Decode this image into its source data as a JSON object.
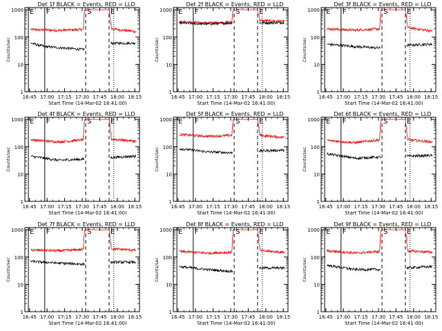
{
  "chart_data": [
    {
      "type": "line",
      "title": "Det 1f BLACK = Events, RED = LLD",
      "xlabel": "Start Time (14-Mar-02 16:41:00)",
      "ylabel": "Counts/sec",
      "yscale": "log",
      "ylim": [
        1,
        1200
      ],
      "xticks": [
        "16:45",
        "17:00",
        "17:15",
        "17:30",
        "17:45",
        "18:00",
        "18:15"
      ],
      "yticks": [
        "1",
        "10",
        "100",
        "1000"
      ],
      "markers": [
        {
          "label": "E",
          "type": "solid",
          "x": "16:44"
        },
        {
          "label": "F",
          "type": "solid",
          "x": "16:58"
        },
        {
          "label": "S",
          "type": "dashed",
          "x": "17:33"
        },
        {
          "label": "E",
          "type": "dashed",
          "x": "17:53"
        }
      ],
      "series": [
        {
          "color": "#ff0000",
          "level": 190,
          "points": [
            [
              "16:46",
              190
            ],
            [
              "17:10",
              175
            ],
            [
              "17:31",
              190
            ],
            [
              "17:32",
              1000
            ],
            [
              "17:53",
              1000
            ],
            [
              "17:55",
              200
            ],
            [
              "18:15",
              160
            ]
          ]
        },
        {
          "color": "#000000",
          "level": 70,
          "points": [
            [
              "16:46",
              60
            ],
            [
              "16:58",
              45
            ],
            [
              "17:31",
              35
            ],
            [
              "17:53",
              60
            ],
            [
              "18:15",
              60
            ]
          ]
        }
      ]
    },
    {
      "type": "line",
      "title": "Det 2f BLACK = Events, RED = LLD",
      "xlabel": "Start Time (14-Mar-02 16:41:00)",
      "ylabel": "Counts/sec",
      "yscale": "log",
      "ylim": [
        1,
        1200
      ],
      "xticks": [
        "16:45",
        "17:00",
        "17:15",
        "17:30",
        "17:45",
        "18:00",
        "18:15"
      ],
      "yticks": [
        "1",
        "10",
        "100",
        "1000"
      ],
      "markers": [
        {
          "label": "E",
          "type": "solid",
          "x": "16:44"
        },
        {
          "label": "F",
          "type": "solid",
          "x": "16:58"
        },
        {
          "label": "S",
          "type": "dashed",
          "x": "17:33"
        },
        {
          "label": "E",
          "type": "dashed",
          "x": "17:53"
        }
      ],
      "series": [
        {
          "color": "#ff0000",
          "points": [
            [
              "16:46",
              360
            ],
            [
              "17:10",
              330
            ],
            [
              "17:31",
              350
            ],
            [
              "17:32",
              1000
            ],
            [
              "17:53",
              1000
            ],
            [
              "17:55",
              400
            ],
            [
              "18:15",
              380
            ]
          ]
        },
        {
          "color": "#000000",
          "points": [
            [
              "16:46",
              330
            ],
            [
              "17:10",
              300
            ],
            [
              "17:31",
              330
            ],
            [
              "17:53",
              330
            ],
            [
              "18:15",
              340
            ]
          ]
        }
      ]
    },
    {
      "type": "line",
      "title": "Det 3f BLACK = Events, RED = LLD",
      "xlabel": "Start Time (14-Mar-02 16:41:00)",
      "ylabel": "Counts/sec",
      "yscale": "log",
      "ylim": [
        1,
        1200
      ],
      "xticks": [
        "16:45",
        "17:00",
        "17:15",
        "17:30",
        "17:45",
        "18:00",
        "18:15"
      ],
      "yticks": [
        "1",
        "10",
        "100",
        "1000"
      ],
      "markers": [
        {
          "label": "E",
          "type": "solid",
          "x": "16:44"
        },
        {
          "label": "F",
          "type": "solid",
          "x": "16:58"
        },
        {
          "label": "S",
          "type": "dashed",
          "x": "17:33"
        },
        {
          "label": "E",
          "type": "dashed",
          "x": "17:53"
        }
      ],
      "series": [
        {
          "color": "#ff0000",
          "points": [
            [
              "16:46",
              200
            ],
            [
              "17:10",
              180
            ],
            [
              "17:31",
              200
            ],
            [
              "17:32",
              1000
            ],
            [
              "17:53",
              1000
            ],
            [
              "17:55",
              220
            ],
            [
              "18:15",
              170
            ]
          ]
        },
        {
          "color": "#000000",
          "points": [
            [
              "16:46",
              55
            ],
            [
              "17:10",
              45
            ],
            [
              "17:31",
              40
            ],
            [
              "17:53",
              50
            ],
            [
              "18:15",
              55
            ]
          ]
        }
      ]
    },
    {
      "type": "line",
      "title": "Det 4f BLACK = Events, RED = LLD",
      "xlabel": "Start Time (14-Mar-02 16:41:00)",
      "ylabel": "Counts/sec",
      "yscale": "log",
      "ylim": [
        1,
        1200
      ],
      "xticks": [
        "16:45",
        "17:00",
        "17:15",
        "17:30",
        "17:45",
        "18:00",
        "18:15"
      ],
      "yticks": [
        "1",
        "10",
        "100",
        "1000"
      ],
      "markers": [
        {
          "label": "E",
          "type": "solid",
          "x": "16:44"
        },
        {
          "label": "F",
          "type": "solid",
          "x": "16:58"
        },
        {
          "label": "S",
          "type": "dashed",
          "x": "17:33"
        },
        {
          "label": "E",
          "type": "dashed",
          "x": "17:53"
        }
      ],
      "series": [
        {
          "color": "#ff0000",
          "points": [
            [
              "16:46",
              180
            ],
            [
              "17:10",
              150
            ],
            [
              "17:31",
              180
            ],
            [
              "17:32",
              1000
            ],
            [
              "17:53",
              1000
            ],
            [
              "17:55",
              190
            ],
            [
              "18:15",
              160
            ]
          ]
        },
        {
          "color": "#000000",
          "points": [
            [
              "16:46",
              45
            ],
            [
              "17:10",
              32
            ],
            [
              "17:31",
              35
            ],
            [
              "17:53",
              40
            ],
            [
              "18:15",
              45
            ]
          ]
        }
      ]
    },
    {
      "type": "line",
      "title": "Det 5f BLACK = Events, RED = LLD",
      "xlabel": "Start Time (14-Mar-02 16:41:00)",
      "ylabel": "Counts/sec",
      "yscale": "log",
      "ylim": [
        1,
        1200
      ],
      "xticks": [
        "16:45",
        "17:00",
        "17:15",
        "17:30",
        "17:45",
        "18:00",
        "18:15"
      ],
      "yticks": [
        "1",
        "10",
        "100",
        "1000"
      ],
      "markers": [
        {
          "label": "E",
          "type": "solid",
          "x": "16:44"
        },
        {
          "label": "F",
          "type": "solid",
          "x": "16:58"
        },
        {
          "label": "S",
          "type": "dashed",
          "x": "17:33"
        },
        {
          "label": "E",
          "type": "dashed",
          "x": "17:53"
        }
      ],
      "series": [
        {
          "color": "#ff0000",
          "points": [
            [
              "16:46",
              280
            ],
            [
              "17:10",
              240
            ],
            [
              "17:31",
              260
            ],
            [
              "17:32",
              1000
            ],
            [
              "17:53",
              1000
            ],
            [
              "17:55",
              260
            ],
            [
              "18:15",
              220
            ]
          ]
        },
        {
          "color": "#000000",
          "points": [
            [
              "16:46",
              85
            ],
            [
              "17:10",
              65
            ],
            [
              "17:31",
              60
            ],
            [
              "17:53",
              70
            ],
            [
              "18:15",
              75
            ]
          ]
        }
      ]
    },
    {
      "type": "line",
      "title": "Det 6f BLACK = Events, RED = LLD",
      "xlabel": "Start Time (14-Mar-02 16:41:00)",
      "ylabel": "Counts/sec",
      "yscale": "log",
      "ylim": [
        1,
        1200
      ],
      "xticks": [
        "16:45",
        "17:00",
        "17:15",
        "17:30",
        "17:45",
        "18:00",
        "18:15"
      ],
      "yticks": [
        "1",
        "10",
        "100",
        "1000"
      ],
      "markers": [
        {
          "label": "E",
          "type": "solid",
          "x": "16:44"
        },
        {
          "label": "F",
          "type": "solid",
          "x": "16:58"
        },
        {
          "label": "S",
          "type": "dashed",
          "x": "17:33"
        },
        {
          "label": "E",
          "type": "dashed",
          "x": "17:53"
        }
      ],
      "series": [
        {
          "color": "#ff0000",
          "points": [
            [
              "16:46",
              170
            ],
            [
              "17:10",
              140
            ],
            [
              "17:31",
              180
            ],
            [
              "17:32",
              1000
            ],
            [
              "17:53",
              1000
            ],
            [
              "17:55",
              180
            ],
            [
              "18:15",
              150
            ]
          ]
        },
        {
          "color": "#000000",
          "points": [
            [
              "16:46",
              55
            ],
            [
              "17:10",
              38
            ],
            [
              "17:31",
              42
            ],
            [
              "17:53",
              45
            ],
            [
              "18:15",
              48
            ]
          ]
        }
      ]
    },
    {
      "type": "line",
      "title": "Det 7f BLACK = Events, RED = LLD",
      "xlabel": "Start Time (14-Mar-02 16:41:00)",
      "ylabel": "Counts/sec",
      "yscale": "log",
      "ylim": [
        1,
        1200
      ],
      "xticks": [
        "16:45",
        "17:00",
        "17:15",
        "17:30",
        "17:45",
        "18:00",
        "18:15"
      ],
      "yticks": [
        "1",
        "10",
        "100",
        "1000"
      ],
      "markers": [
        {
          "label": "E",
          "type": "solid",
          "x": "16:44"
        },
        {
          "label": "F",
          "type": "solid",
          "x": "16:58"
        },
        {
          "label": "S",
          "type": "dashed",
          "x": "17:33"
        },
        {
          "label": "E",
          "type": "dashed",
          "x": "17:53"
        }
      ],
      "series": [
        {
          "color": "#ff0000",
          "points": [
            [
              "16:46",
              180
            ],
            [
              "17:10",
              170
            ],
            [
              "17:31",
              190
            ],
            [
              "17:32",
              1000
            ],
            [
              "17:53",
              1000
            ],
            [
              "17:55",
              200
            ],
            [
              "18:15",
              180
            ]
          ]
        },
        {
          "color": "#000000",
          "points": [
            [
              "16:46",
              70
            ],
            [
              "17:10",
              60
            ],
            [
              "17:31",
              55
            ],
            [
              "17:53",
              65
            ],
            [
              "18:15",
              65
            ]
          ]
        }
      ]
    },
    {
      "type": "line",
      "title": "Det 8f BLACK = Events, RED = LLD",
      "xlabel": "Start Time (14-Mar-02 16:41:00)",
      "ylabel": "Counts/sec",
      "yscale": "log",
      "ylim": [
        1,
        1200
      ],
      "xticks": [
        "16:45",
        "17:00",
        "17:15",
        "17:30",
        "17:45",
        "18:00",
        "18:15"
      ],
      "yticks": [
        "1",
        "10",
        "100",
        "1000"
      ],
      "markers": [
        {
          "label": "E",
          "type": "solid",
          "x": "16:44"
        },
        {
          "label": "F",
          "type": "solid",
          "x": "16:58"
        },
        {
          "label": "S",
          "type": "dashed",
          "x": "17:33"
        },
        {
          "label": "E",
          "type": "dashed",
          "x": "17:53"
        }
      ],
      "series": [
        {
          "color": "#ff0000",
          "points": [
            [
              "16:46",
              160
            ],
            [
              "17:10",
              140
            ],
            [
              "17:31",
              150
            ],
            [
              "17:32",
              1000
            ],
            [
              "17:53",
              1000
            ],
            [
              "17:55",
              170
            ],
            [
              "18:15",
              150
            ]
          ]
        },
        {
          "color": "#000000",
          "points": [
            [
              "16:46",
              45
            ],
            [
              "17:10",
              35
            ],
            [
              "17:31",
              30
            ],
            [
              "17:53",
              40
            ],
            [
              "18:15",
              40
            ]
          ]
        }
      ]
    },
    {
      "type": "line",
      "title": "Det 9f BLACK = Events, RED = LLD",
      "xlabel": "Start Time (14-Mar-02 16:41:00)",
      "ylabel": "Counts/sec",
      "yscale": "log",
      "ylim": [
        1,
        1200
      ],
      "xticks": [
        "16:45",
        "17:00",
        "17:15",
        "17:30",
        "17:45",
        "18:00",
        "18:15"
      ],
      "yticks": [
        "1",
        "10",
        "100",
        "1000"
      ],
      "markers": [
        {
          "label": "E",
          "type": "solid",
          "x": "16:44"
        },
        {
          "label": "F",
          "type": "solid",
          "x": "16:58"
        },
        {
          "label": "S",
          "type": "dashed",
          "x": "17:33"
        },
        {
          "label": "E",
          "type": "dashed",
          "x": "17:53"
        }
      ],
      "series": [
        {
          "color": "#ff0000",
          "points": [
            [
              "16:46",
              170
            ],
            [
              "17:10",
              140
            ],
            [
              "17:31",
              160
            ],
            [
              "17:32",
              1000
            ],
            [
              "17:53",
              1000
            ],
            [
              "17:55",
              170
            ],
            [
              "18:15",
              150
            ]
          ]
        },
        {
          "color": "#000000",
          "points": [
            [
              "16:46",
              50
            ],
            [
              "17:10",
              35
            ],
            [
              "17:31",
              35
            ],
            [
              "17:53",
              40
            ],
            [
              "18:15",
              45
            ]
          ]
        }
      ]
    }
  ]
}
